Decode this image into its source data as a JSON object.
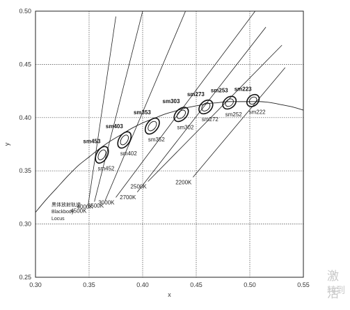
{
  "chart_data": {
    "type": "scatter",
    "title": "",
    "xlabel": "x",
    "ylabel": "y",
    "xlim": [
      0.3,
      0.55
    ],
    "ylim": [
      0.25,
      0.5
    ],
    "x_ticks": [
      "0.30",
      "0.35",
      "0.40",
      "0.45",
      "0.50",
      "0.55"
    ],
    "y_ticks": [
      "0.25",
      "0.30",
      "0.35",
      "0.40",
      "0.45",
      "0.50"
    ],
    "grid": true,
    "locus_label": [
      "黑体放射轨迹",
      "Blackbody",
      "Locus"
    ],
    "locus": [
      [
        0.3,
        0.311
      ],
      [
        0.31,
        0.323
      ],
      [
        0.32,
        0.334
      ],
      [
        0.33,
        0.345
      ],
      [
        0.34,
        0.355
      ],
      [
        0.35,
        0.363
      ],
      [
        0.36,
        0.371
      ],
      [
        0.37,
        0.378
      ],
      [
        0.38,
        0.384
      ],
      [
        0.39,
        0.39
      ],
      [
        0.4,
        0.395
      ],
      [
        0.41,
        0.399
      ],
      [
        0.42,
        0.403
      ],
      [
        0.43,
        0.406
      ],
      [
        0.44,
        0.409
      ],
      [
        0.45,
        0.411
      ],
      [
        0.46,
        0.413
      ],
      [
        0.47,
        0.414
      ],
      [
        0.48,
        0.415
      ],
      [
        0.49,
        0.415
      ],
      [
        0.5,
        0.415
      ],
      [
        0.51,
        0.415
      ],
      [
        0.52,
        0.414
      ],
      [
        0.53,
        0.412
      ],
      [
        0.54,
        0.41
      ],
      [
        0.55,
        0.407
      ]
    ],
    "isotherms": [
      {
        "label": "4500K",
        "from": [
          0.349,
          0.317
        ],
        "to": [
          0.375,
          0.495
        ]
      },
      {
        "label": "4000K",
        "from": [
          0.355,
          0.321
        ],
        "to": [
          0.4,
          0.5
        ]
      },
      {
        "label": "3500K",
        "from": [
          0.365,
          0.322
        ],
        "to": [
          0.44,
          0.5
        ]
      },
      {
        "label": "3000K",
        "from": [
          0.375,
          0.325
        ],
        "to": [
          0.505,
          0.5
        ]
      },
      {
        "label": "2700K",
        "from": [
          0.395,
          0.33
        ],
        "to": [
          0.515,
          0.485
        ]
      },
      {
        "label": "2500K",
        "from": [
          0.405,
          0.34
        ],
        "to": [
          0.53,
          0.468
        ]
      },
      {
        "label": "2200K",
        "from": [
          0.447,
          0.344
        ],
        "to": [
          0.533,
          0.447
        ]
      }
    ],
    "ellipses": [
      {
        "name": "sm453",
        "sub": "sm452",
        "x": 0.362,
        "y": 0.365,
        "rx": 0.005,
        "ry": 0.0085
      },
      {
        "name": "sm403",
        "sub": "sm402",
        "x": 0.383,
        "y": 0.379,
        "rx": 0.005,
        "ry": 0.0085
      },
      {
        "name": "sm353",
        "sub": "sm352",
        "x": 0.409,
        "y": 0.392,
        "rx": 0.0052,
        "ry": 0.0085
      },
      {
        "name": "sm303",
        "sub": "sm302",
        "x": 0.436,
        "y": 0.403,
        "rx": 0.005,
        "ry": 0.008
      },
      {
        "name": "sm273",
        "sub": "sm272",
        "x": 0.459,
        "y": 0.41,
        "rx": 0.0052,
        "ry": 0.0075
      },
      {
        "name": "sm253",
        "sub": "sm252",
        "x": 0.481,
        "y": 0.414,
        "rx": 0.005,
        "ry": 0.007
      },
      {
        "name": "sm223",
        "sub": "sm222",
        "x": 0.503,
        "y": 0.416,
        "rx": 0.0048,
        "ry": 0.0065
      }
    ]
  },
  "watermark": {
    "line1": "激活",
    "line2": "转到"
  }
}
